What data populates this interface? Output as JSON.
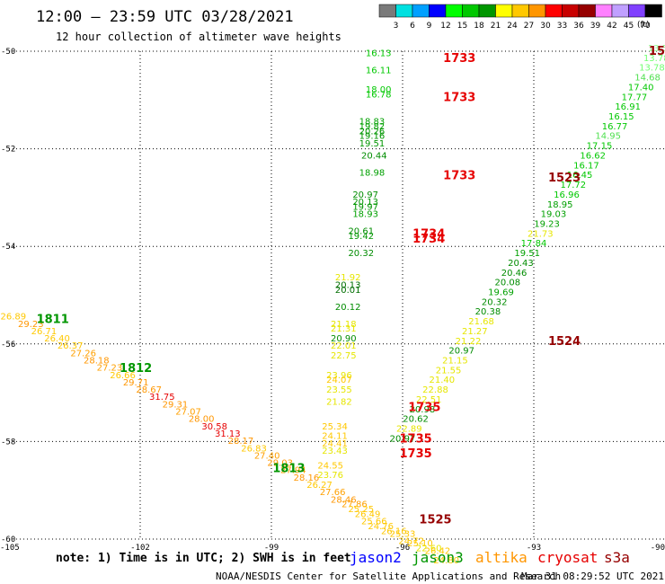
{
  "header": {
    "title": "12:00 – 23:59 UTC 03/28/2021",
    "subtitle": "12 hour collection of altimeter wave heights"
  },
  "color_scale": {
    "unit_label": "(ft)",
    "colors": [
      "#7a7a7a",
      "#00e0e0",
      "#00a0ff",
      "#0000ff",
      "#00ff00",
      "#00c800",
      "#009600",
      "#ffff00",
      "#ffc800",
      "#ff9600",
      "#ff0000",
      "#c80000",
      "#960000",
      "#ff80ff",
      "#c0a0ff",
      "#8040ff",
      "#000000"
    ],
    "labels": [
      "3",
      "6",
      "9",
      "12",
      "15",
      "18",
      "21",
      "24",
      "27",
      "30",
      "33",
      "36",
      "39",
      "42",
      "45",
      "70"
    ]
  },
  "axes": {
    "xlim": [
      -105,
      -90
    ],
    "ylim": [
      -60,
      -50
    ],
    "x_ticks": [
      "-105",
      "-102",
      "-99",
      "-96",
      "-93",
      "-90"
    ],
    "x_values": [
      -105,
      -102,
      -99,
      -96,
      -93,
      -90
    ],
    "y_ticks": [
      "-50",
      "-52",
      "-54",
      "-56",
      "-58",
      "-60"
    ],
    "y_values": [
      -50,
      -52,
      -54,
      -56,
      -58,
      -60
    ]
  },
  "chart_data": {
    "type": "scatter",
    "xlabel": "",
    "ylabel": "",
    "grid": true,
    "observations": [
      {
        "lon": -96.55,
        "lat": -50.1,
        "v": "16.13",
        "c": "#00c800"
      },
      {
        "lon": -96.55,
        "lat": -50.45,
        "v": "16.11",
        "c": "#00c800"
      },
      {
        "lon": -96.55,
        "lat": -50.85,
        "v": "18.00",
        "c": "#00c800"
      },
      {
        "lon": -96.55,
        "lat": -50.95,
        "v": "16.78",
        "c": "#00c800"
      },
      {
        "lon": -96.7,
        "lat": -51.5,
        "v": "18.83",
        "c": "#00a000"
      },
      {
        "lon": -96.7,
        "lat": -51.6,
        "v": "19.82",
        "c": "#00a000"
      },
      {
        "lon": -96.7,
        "lat": -51.7,
        "v": "20.26",
        "c": "#009600"
      },
      {
        "lon": -96.7,
        "lat": -51.8,
        "v": "19.16",
        "c": "#009600"
      },
      {
        "lon": -96.7,
        "lat": -51.95,
        "v": "19.51",
        "c": "#009600"
      },
      {
        "lon": -96.65,
        "lat": -52.2,
        "v": "20.44",
        "c": "#008c00"
      },
      {
        "lon": -96.7,
        "lat": -52.55,
        "v": "18.98",
        "c": "#00a000"
      },
      {
        "lon": -96.85,
        "lat": -53.0,
        "v": "20.97",
        "c": "#008c00"
      },
      {
        "lon": -96.85,
        "lat": -53.15,
        "v": "20.13",
        "c": "#009600"
      },
      {
        "lon": -96.85,
        "lat": -53.25,
        "v": "19.97",
        "c": "#009600"
      },
      {
        "lon": -96.85,
        "lat": -53.4,
        "v": "18.93",
        "c": "#00a000"
      },
      {
        "lon": -96.95,
        "lat": -53.75,
        "v": "20.61",
        "c": "#008c00"
      },
      {
        "lon": -96.95,
        "lat": -53.85,
        "v": "19.42",
        "c": "#009600"
      },
      {
        "lon": -96.95,
        "lat": -54.2,
        "v": "20.32",
        "c": "#008c00"
      },
      {
        "lon": -97.25,
        "lat": -54.7,
        "v": "21.92",
        "c": "#e6e600"
      },
      {
        "lon": -97.25,
        "lat": -54.85,
        "v": "20.13",
        "c": "#006e00"
      },
      {
        "lon": -97.25,
        "lat": -54.95,
        "v": "20.01",
        "c": "#006e00"
      },
      {
        "lon": -97.25,
        "lat": -55.3,
        "v": "20.12",
        "c": "#008c00"
      },
      {
        "lon": -97.35,
        "lat": -55.65,
        "v": "21.18",
        "c": "#e6e600"
      },
      {
        "lon": -97.35,
        "lat": -55.75,
        "v": "21.31",
        "c": "#e6e600"
      },
      {
        "lon": -97.35,
        "lat": -55.95,
        "v": "20.90",
        "c": "#008c00"
      },
      {
        "lon": -97.35,
        "lat": -56.1,
        "v": "22.01",
        "c": "#e6e600"
      },
      {
        "lon": -97.35,
        "lat": -56.3,
        "v": "22.75",
        "c": "#e6e600"
      },
      {
        "lon": -97.45,
        "lat": -56.7,
        "v": "23.96",
        "c": "#e6e600"
      },
      {
        "lon": -97.45,
        "lat": -56.8,
        "v": "24.07",
        "c": "#ffc800"
      },
      {
        "lon": -97.45,
        "lat": -57.0,
        "v": "23.55",
        "c": "#e6e600"
      },
      {
        "lon": -97.45,
        "lat": -57.25,
        "v": "21.82",
        "c": "#e6e600"
      },
      {
        "lon": -97.55,
        "lat": -57.75,
        "v": "25.34",
        "c": "#ffc800"
      },
      {
        "lon": -97.55,
        "lat": -57.95,
        "v": "24.11",
        "c": "#ffc800"
      },
      {
        "lon": -97.55,
        "lat": -58.1,
        "v": "24.41",
        "c": "#ffc800"
      },
      {
        "lon": -97.55,
        "lat": -58.25,
        "v": "23.43",
        "c": "#e6e600"
      },
      {
        "lon": -97.65,
        "lat": -58.55,
        "v": "24.55",
        "c": "#ffc800"
      },
      {
        "lon": -97.65,
        "lat": -58.75,
        "v": "23.76",
        "c": "#e6e600"
      },
      {
        "lon": -104.9,
        "lat": -55.5,
        "v": "26.89",
        "c": "#ffc800"
      },
      {
        "lon": -104.5,
        "lat": -55.65,
        "v": "29.23",
        "c": "#ff9600"
      },
      {
        "lon": -104.2,
        "lat": -55.8,
        "v": "26.71",
        "c": "#ffc800"
      },
      {
        "lon": -103.9,
        "lat": -55.95,
        "v": "26.40",
        "c": "#ffc800"
      },
      {
        "lon": -103.6,
        "lat": -56.1,
        "v": "26.37",
        "c": "#ffc800"
      },
      {
        "lon": -103.3,
        "lat": -56.25,
        "v": "27.26",
        "c": "#ffa000"
      },
      {
        "lon": -103.0,
        "lat": -56.4,
        "v": "28.18",
        "c": "#ff9600"
      },
      {
        "lon": -102.7,
        "lat": -56.55,
        "v": "27.23",
        "c": "#ffa000"
      },
      {
        "lon": -102.4,
        "lat": -56.7,
        "v": "26.66",
        "c": "#ffc800"
      },
      {
        "lon": -102.1,
        "lat": -56.85,
        "v": "29.71",
        "c": "#ff9600"
      },
      {
        "lon": -101.8,
        "lat": -57.0,
        "v": "28.67",
        "c": "#ff9600"
      },
      {
        "lon": -101.5,
        "lat": -57.15,
        "v": "31.75",
        "c": "#e60000"
      },
      {
        "lon": -101.2,
        "lat": -57.3,
        "v": "29.31",
        "c": "#ff9600"
      },
      {
        "lon": -100.9,
        "lat": -57.45,
        "v": "27.07",
        "c": "#ffa000"
      },
      {
        "lon": -100.6,
        "lat": -57.6,
        "v": "28.00",
        "c": "#ff9600"
      },
      {
        "lon": -100.3,
        "lat": -57.75,
        "v": "30.58",
        "c": "#e60000"
      },
      {
        "lon": -100.0,
        "lat": -57.9,
        "v": "31.13",
        "c": "#e60000"
      },
      {
        "lon": -99.7,
        "lat": -58.05,
        "v": "28.17",
        "c": "#ff9600"
      },
      {
        "lon": -99.4,
        "lat": -58.2,
        "v": "26.83",
        "c": "#ffc800"
      },
      {
        "lon": -99.1,
        "lat": -58.35,
        "v": "27.40",
        "c": "#ffa000"
      },
      {
        "lon": -98.8,
        "lat": -58.5,
        "v": "29.03",
        "c": "#ff9600"
      },
      {
        "lon": -98.5,
        "lat": -58.65,
        "v": "27.94",
        "c": "#ffa000"
      },
      {
        "lon": -98.2,
        "lat": -58.8,
        "v": "28.16",
        "c": "#ff9600"
      },
      {
        "lon": -97.9,
        "lat": -58.95,
        "v": "26.27",
        "c": "#ffc800"
      },
      {
        "lon": -97.6,
        "lat": -59.1,
        "v": "27.66",
        "c": "#ffa000"
      },
      {
        "lon": -97.35,
        "lat": -59.25,
        "v": "28.46",
        "c": "#ff9600"
      },
      {
        "lon": -97.1,
        "lat": -59.35,
        "v": "27.86",
        "c": "#ffa000"
      },
      {
        "lon": -96.95,
        "lat": -59.45,
        "v": "25.25",
        "c": "#ffc800"
      },
      {
        "lon": -96.8,
        "lat": -59.55,
        "v": "26.49",
        "c": "#ffc800"
      },
      {
        "lon": -96.65,
        "lat": -59.7,
        "v": "25.66",
        "c": "#ffc800"
      },
      {
        "lon": -96.5,
        "lat": -59.8,
        "v": "24.76",
        "c": "#ffc800"
      },
      {
        "lon": -96.2,
        "lat": -59.9,
        "v": "26.16",
        "c": "#ffc800"
      },
      {
        "lon": -96.0,
        "lat": -59.95,
        "v": "25.33",
        "c": "#ffc800"
      },
      {
        "lon": -95.8,
        "lat": -60.1,
        "v": "24.72",
        "c": "#ffc800"
      },
      {
        "lon": -95.6,
        "lat": -60.15,
        "v": "25.10",
        "c": "#ffc800"
      },
      {
        "lon": -95.4,
        "lat": -60.25,
        "v": "22.60",
        "c": "#e6e600"
      },
      {
        "lon": -95.2,
        "lat": -60.3,
        "v": "26.42",
        "c": "#ffc800"
      },
      {
        "lon": -95.0,
        "lat": -60.5,
        "v": "24.80",
        "c": "#ffc800"
      },
      {
        "lon": -90.1,
        "lat": -50.0,
        "v": "13.54",
        "c": "#90ff90"
      },
      {
        "lon": -90.2,
        "lat": -50.2,
        "v": "13.78",
        "c": "#70ff70"
      },
      {
        "lon": -90.3,
        "lat": -50.4,
        "v": "13.78",
        "c": "#70ff70"
      },
      {
        "lon": -90.4,
        "lat": -50.6,
        "v": "14.68",
        "c": "#50e050"
      },
      {
        "lon": -90.55,
        "lat": -50.8,
        "v": "17.40",
        "c": "#00c800"
      },
      {
        "lon": -90.7,
        "lat": -51.0,
        "v": "17.77",
        "c": "#00c800"
      },
      {
        "lon": -90.85,
        "lat": -51.2,
        "v": "16.91",
        "c": "#00c800"
      },
      {
        "lon": -91.0,
        "lat": -51.4,
        "v": "16.15",
        "c": "#00c800"
      },
      {
        "lon": -91.15,
        "lat": -51.6,
        "v": "16.77",
        "c": "#00c800"
      },
      {
        "lon": -91.3,
        "lat": -51.8,
        "v": "14.95",
        "c": "#50e050"
      },
      {
        "lon": -91.5,
        "lat": -52.0,
        "v": "17.15",
        "c": "#00c800"
      },
      {
        "lon": -91.65,
        "lat": -52.2,
        "v": "16.62",
        "c": "#00c800"
      },
      {
        "lon": -91.8,
        "lat": -52.4,
        "v": "16.17",
        "c": "#00c800"
      },
      {
        "lon": -91.95,
        "lat": -52.6,
        "v": "16.45",
        "c": "#00c800"
      },
      {
        "lon": -92.1,
        "lat": -52.8,
        "v": "17.72",
        "c": "#00c800"
      },
      {
        "lon": -92.25,
        "lat": -53.0,
        "v": "16.96",
        "c": "#00c800"
      },
      {
        "lon": -92.4,
        "lat": -53.2,
        "v": "18.95",
        "c": "#00a000"
      },
      {
        "lon": -92.55,
        "lat": -53.4,
        "v": "19.03",
        "c": "#00a000"
      },
      {
        "lon": -92.7,
        "lat": -53.6,
        "v": "19.23",
        "c": "#00a000"
      },
      {
        "lon": -92.85,
        "lat": -53.8,
        "v": "21.73",
        "c": "#e6e600"
      },
      {
        "lon": -93.0,
        "lat": -54.0,
        "v": "17.84",
        "c": "#00c800"
      },
      {
        "lon": -93.15,
        "lat": -54.2,
        "v": "19.51",
        "c": "#00a000"
      },
      {
        "lon": -93.3,
        "lat": -54.4,
        "v": "20.43",
        "c": "#008c00"
      },
      {
        "lon": -93.45,
        "lat": -54.6,
        "v": "20.46",
        "c": "#008c00"
      },
      {
        "lon": -93.6,
        "lat": -54.8,
        "v": "20.08",
        "c": "#008c00"
      },
      {
        "lon": -93.75,
        "lat": -55.0,
        "v": "19.69",
        "c": "#00a000"
      },
      {
        "lon": -93.9,
        "lat": -55.2,
        "v": "20.32",
        "c": "#008c00"
      },
      {
        "lon": -94.05,
        "lat": -55.4,
        "v": "20.38",
        "c": "#008c00"
      },
      {
        "lon": -94.2,
        "lat": -55.6,
        "v": "21.68",
        "c": "#e6e600"
      },
      {
        "lon": -94.35,
        "lat": -55.8,
        "v": "21.27",
        "c": "#e6e600"
      },
      {
        "lon": -94.5,
        "lat": -56.0,
        "v": "21.22",
        "c": "#e6e600"
      },
      {
        "lon": -94.65,
        "lat": -56.2,
        "v": "20.97",
        "c": "#008c00"
      },
      {
        "lon": -94.8,
        "lat": -56.4,
        "v": "21.15",
        "c": "#e6e600"
      },
      {
        "lon": -94.95,
        "lat": -56.6,
        "v": "21.55",
        "c": "#e6e600"
      },
      {
        "lon": -95.1,
        "lat": -56.8,
        "v": "21.40",
        "c": "#e6e600"
      },
      {
        "lon": -95.25,
        "lat": -57.0,
        "v": "22.88",
        "c": "#e6e600"
      },
      {
        "lon": -95.4,
        "lat": -57.2,
        "v": "22.51",
        "c": "#e6e600"
      },
      {
        "lon": -95.55,
        "lat": -57.4,
        "v": "20.98",
        "c": "#008c00"
      },
      {
        "lon": -95.7,
        "lat": -57.6,
        "v": "20.62",
        "c": "#008c00"
      },
      {
        "lon": -95.85,
        "lat": -57.8,
        "v": "22.89",
        "c": "#e6e600"
      },
      {
        "lon": -96.0,
        "lat": -58.0,
        "v": "20.97",
        "c": "#008c00"
      }
    ],
    "pass_times": [
      {
        "lon": -94.7,
        "lat": -50.15,
        "v": "1733",
        "c": "#e60000"
      },
      {
        "lon": -94.7,
        "lat": -50.95,
        "v": "1733",
        "c": "#e60000"
      },
      {
        "lon": -94.7,
        "lat": -52.55,
        "v": "1733",
        "c": "#e60000"
      },
      {
        "lon": -95.4,
        "lat": -53.75,
        "v": "1734",
        "c": "#e60000"
      },
      {
        "lon": -95.4,
        "lat": -53.85,
        "v": "1734",
        "c": "#e60000"
      },
      {
        "lon": -95.5,
        "lat": -57.3,
        "v": "1735",
        "c": "#e60000"
      },
      {
        "lon": -95.7,
        "lat": -57.95,
        "v": "1735",
        "c": "#e60000"
      },
      {
        "lon": -95.7,
        "lat": -58.25,
        "v": "1735",
        "c": "#e60000"
      },
      {
        "lon": -92.3,
        "lat": -52.6,
        "v": "1523",
        "c": "#960000"
      },
      {
        "lon": -92.3,
        "lat": -55.95,
        "v": "1524",
        "c": "#960000"
      },
      {
        "lon": -95.25,
        "lat": -59.6,
        "v": "1525",
        "c": "#960000"
      },
      {
        "lon": -90.0,
        "lat": -50.0,
        "v": "15",
        "c": "#960000"
      },
      {
        "lon": -104.0,
        "lat": -55.5,
        "v": "1811",
        "c": "#009600"
      },
      {
        "lon": -102.1,
        "lat": -56.5,
        "v": "1812",
        "c": "#009600"
      },
      {
        "lon": -98.6,
        "lat": -58.55,
        "v": "1813",
        "c": "#009600"
      }
    ]
  },
  "footer": {
    "note": "note: 1) Time is in UTC; 2) SWH is in feet",
    "satellites": [
      {
        "name": "jason2",
        "color": "#0000ff"
      },
      {
        "name": "jason3",
        "color": "#009600"
      },
      {
        "name": "altika",
        "color": "#ff9600"
      },
      {
        "name": "cryosat",
        "color": "#e60000"
      },
      {
        "name": "s3a",
        "color": "#960000"
      }
    ],
    "credit": "NOAA/NESDIS Center for Satellite Applications and Research",
    "timestamp": "Mar 31 08:29:52 UTC 2021"
  }
}
